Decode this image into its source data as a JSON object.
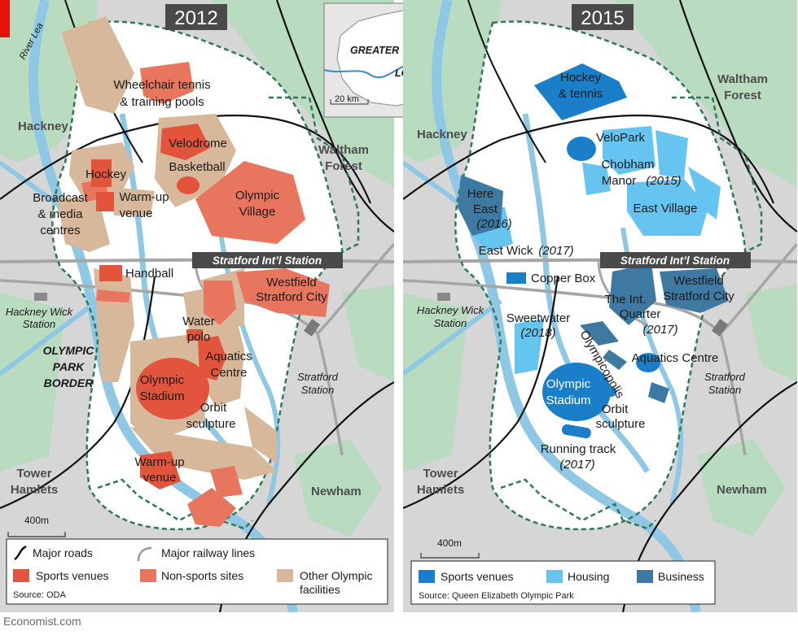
{
  "panels": [
    {
      "year": "2012",
      "places": {
        "hackney": "Hackney",
        "waltham_forest": [
          "Waltham",
          "Forest"
        ],
        "tower_hamlets": [
          "Tower",
          "Hamlets"
        ],
        "newham": "Newham",
        "river_lea": "River Lea",
        "hackney_wick": [
          "Hackney Wick",
          "Station"
        ],
        "stratford": [
          "Stratford",
          "Station"
        ],
        "stratford_intl": "Stratford Int’l Station",
        "border": [
          "OLYMPIC",
          "PARK",
          "BORDER"
        ]
      },
      "labels": {
        "wheelchair": [
          "Wheelchair tennis",
          "& training pools"
        ],
        "velodrome": "Velodrome",
        "basketball": "Basketball",
        "hockey": "Hockey",
        "broadcast": [
          "Broadcast",
          "& media",
          "centres"
        ],
        "warmup1": [
          "Warm-up",
          "venue"
        ],
        "olympic_village": [
          "Olympic",
          "Village"
        ],
        "handball": "Handball",
        "westfield": [
          "Westfield",
          "Stratford City"
        ],
        "water_polo": [
          "Water",
          "polo"
        ],
        "aquatics": [
          "Aquatics",
          "Centre"
        ],
        "stadium": [
          "Olympic",
          "Stadium"
        ],
        "orbit": [
          "Orbit",
          "sculpture"
        ],
        "warmup2": [
          "Warm-up",
          "venue"
        ]
      },
      "scale": "400m",
      "legend": {
        "major_roads": "Major roads",
        "railway": "Major railway lines",
        "sports": "Sports venues",
        "non_sports": "Non-sports sites",
        "other": [
          "Other Olympic",
          "facilities"
        ],
        "source": "Source: ODA"
      }
    },
    {
      "year": "2015",
      "places": {
        "hackney": "Hackney",
        "waltham_forest": [
          "Waltham",
          "Forest"
        ],
        "tower_hamlets": [
          "Tower",
          "Hamlets"
        ],
        "newham": "Newham",
        "hackney_wick": [
          "Hackney Wick",
          "Station"
        ],
        "stratford": [
          "Stratford",
          "Station"
        ],
        "stratford_intl": "Stratford Int’l Station"
      },
      "labels": {
        "hockey_tennis": [
          "Hockey",
          "& tennis"
        ],
        "velopark": "VeloPark",
        "chobham": [
          "Chobham",
          "Manor",
          "(2015)"
        ],
        "east_village": "East Village",
        "here_east": [
          "Here",
          "East",
          "(2016)"
        ],
        "east_wick": [
          "East Wick",
          "(2017)"
        ],
        "copper_box": "Copper Box",
        "westfield": [
          "Westfield",
          "Stratford City"
        ],
        "intl_quarter": [
          "The Int.",
          "Quarter",
          "(2017)"
        ],
        "sweetwater": [
          "Sweetwater",
          "(2018)"
        ],
        "olympicopolis": "Olympicopolis",
        "aquatics": "Aquatics Centre",
        "stadium": [
          "Olympic",
          "Stadium"
        ],
        "orbit": [
          "Orbit",
          "sculpture"
        ],
        "running_track": [
          "Running track",
          "(2017)"
        ]
      },
      "scale": "400m",
      "legend": {
        "sports": "Sports venues",
        "housing": "Housing",
        "business": "Business",
        "source": "Source: Queen Elizabeth Olympic Park"
      }
    }
  ],
  "inset": {
    "greater": "GREATER",
    "london": "LONDON",
    "scale": "20 km"
  },
  "footer": "Economist.com",
  "colors": {
    "green": "#b9dcc0",
    "grey": "#d6d6d6",
    "river": "#8ec8e5",
    "sports_2012": "#e2543c",
    "non_sports": "#e8765e",
    "other_olympic": "#d8b89a",
    "sports_2015": "#1a7fc8",
    "housing": "#66c4f0",
    "business": "#3e79a1",
    "border": "#2f7a55",
    "badge": "#4a4a4a",
    "accent": "#e3120b"
  }
}
